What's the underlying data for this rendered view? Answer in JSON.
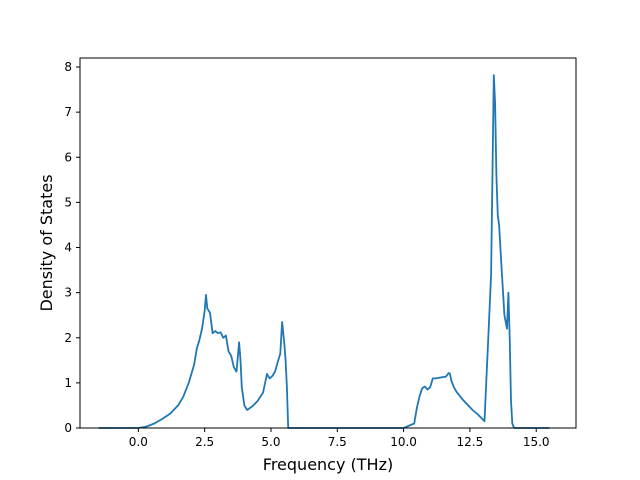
{
  "chart_data": {
    "type": "line",
    "title": "",
    "xlabel": "Frequency (THz)",
    "ylabel": "Density of States",
    "xlim": [
      -2.2,
      16.5
    ],
    "ylim": [
      0,
      8.2
    ],
    "xticks": [
      0.0,
      2.5,
      5.0,
      7.5,
      10.0,
      12.5,
      15.0
    ],
    "xtick_labels": [
      "0.0",
      "2.5",
      "5.0",
      "7.5",
      "10.0",
      "12.5",
      "15.0"
    ],
    "yticks": [
      0,
      1,
      2,
      3,
      4,
      5,
      6,
      7,
      8
    ],
    "ytick_labels": [
      "0",
      "1",
      "2",
      "3",
      "4",
      "5",
      "6",
      "7",
      "8"
    ],
    "grid": false,
    "line_color": "#1f77b4",
    "series": [
      {
        "x": [
          -1.5,
          -0.5,
          0.0,
          0.3,
          0.6,
          0.9,
          1.2,
          1.5,
          1.7,
          1.9,
          2.1,
          2.2,
          2.3,
          2.4,
          2.5,
          2.55,
          2.6,
          2.7,
          2.8,
          2.9,
          3.0,
          3.1,
          3.2,
          3.3,
          3.4,
          3.5,
          3.6,
          3.7,
          3.8,
          3.85,
          3.9,
          4.0,
          4.1,
          4.3,
          4.5,
          4.7,
          4.85,
          4.95,
          5.05,
          5.15,
          5.25,
          5.35,
          5.42,
          5.5,
          5.55,
          5.6,
          5.65,
          6.5,
          8.0,
          10.0,
          10.4,
          10.5,
          10.6,
          10.7,
          10.8,
          10.9,
          11.0,
          11.1,
          11.2,
          11.4,
          11.5,
          11.6,
          11.7,
          11.75,
          11.8,
          11.9,
          12.0,
          12.2,
          12.4,
          12.6,
          12.8,
          13.0,
          13.05,
          13.1,
          13.2,
          13.3,
          13.4,
          13.45,
          13.5,
          13.55,
          13.6,
          13.7,
          13.8,
          13.9,
          13.95,
          14.0,
          14.05,
          14.1,
          14.15,
          14.2,
          15.0,
          15.5
        ],
        "y": [
          0,
          0,
          0,
          0.03,
          0.1,
          0.2,
          0.32,
          0.5,
          0.7,
          1.0,
          1.4,
          1.75,
          1.95,
          2.2,
          2.6,
          2.95,
          2.65,
          2.55,
          2.1,
          2.15,
          2.1,
          2.12,
          2.0,
          2.05,
          1.7,
          1.6,
          1.35,
          1.25,
          1.9,
          1.5,
          0.9,
          0.5,
          0.4,
          0.48,
          0.6,
          0.78,
          1.2,
          1.1,
          1.15,
          1.25,
          1.45,
          1.65,
          2.35,
          1.9,
          1.5,
          0.9,
          0,
          0,
          0,
          0,
          0.1,
          0.45,
          0.7,
          0.88,
          0.92,
          0.85,
          0.9,
          1.1,
          1.1,
          1.12,
          1.13,
          1.14,
          1.22,
          1.2,
          1.05,
          0.9,
          0.8,
          0.65,
          0.52,
          0.4,
          0.3,
          0.18,
          0.15,
          0.8,
          2.1,
          3.4,
          7.82,
          7.2,
          5.6,
          4.7,
          4.5,
          3.5,
          2.5,
          2.2,
          3.0,
          2.0,
          0.6,
          0.1,
          0.02,
          0,
          0,
          0
        ]
      }
    ]
  }
}
